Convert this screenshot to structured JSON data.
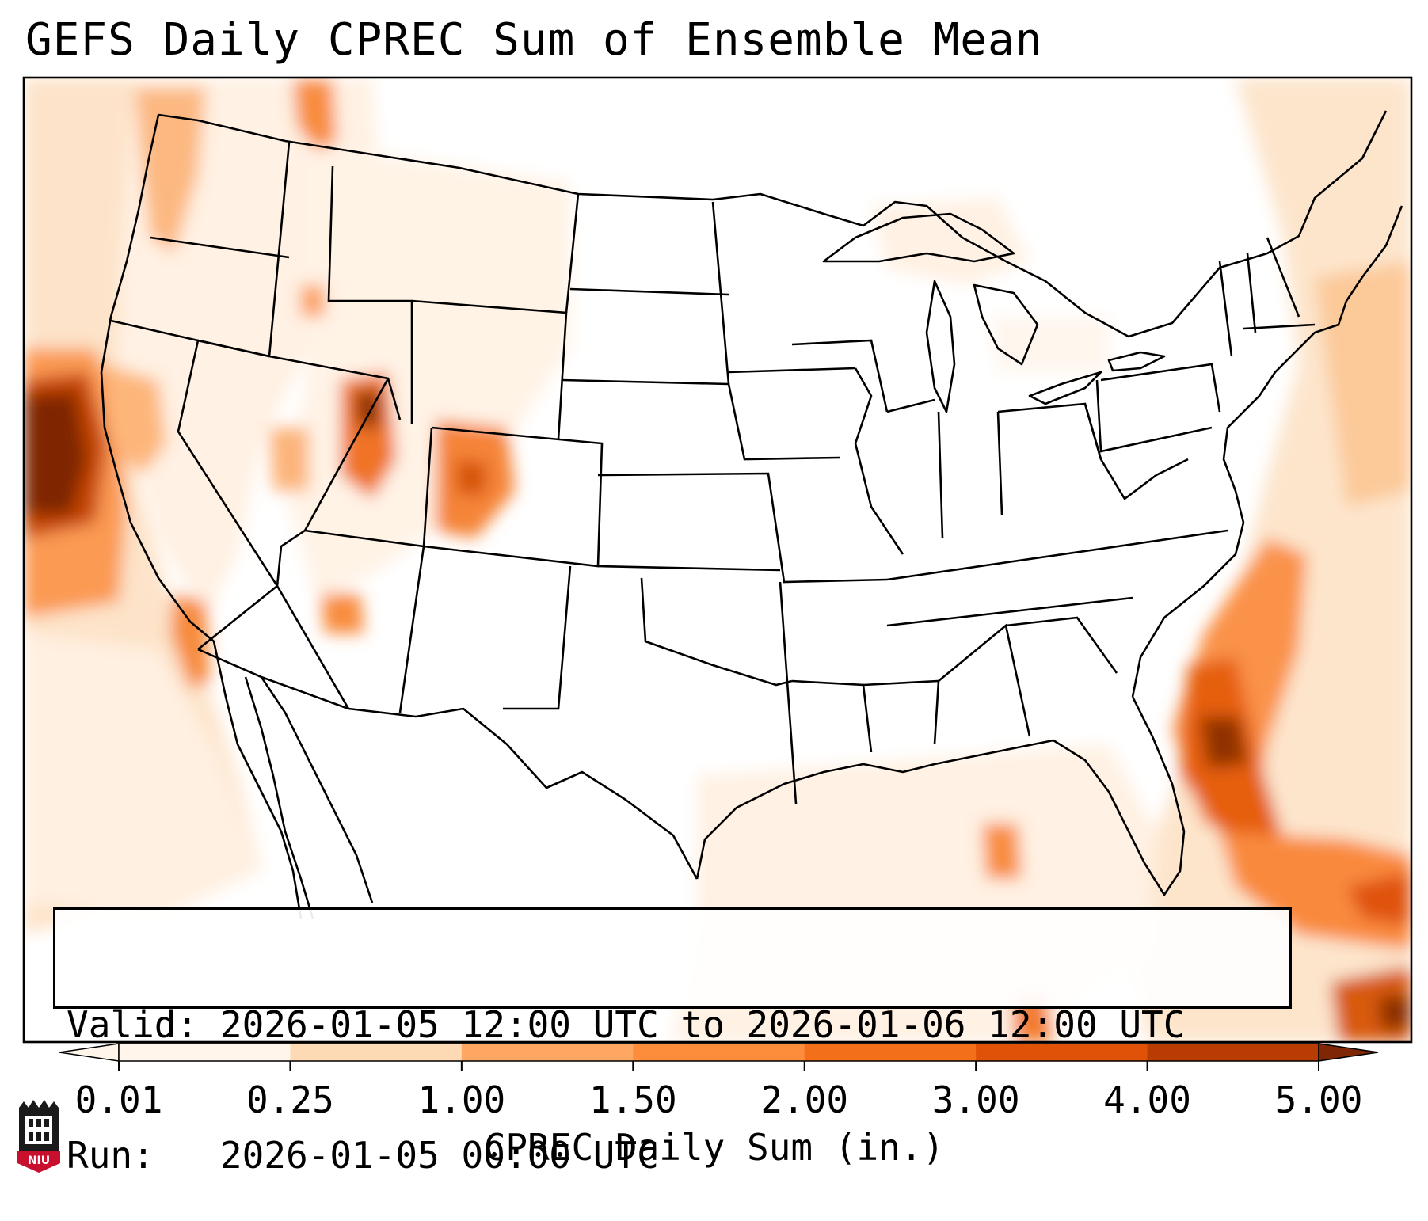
{
  "title": "GEFS Daily CPREC Sum of Ensemble Mean",
  "info": {
    "valid_label": "Valid:",
    "valid_value": "2026-01-05 12:00 UTC to 2026-01-06 12:00 UTC",
    "run_label": "Run:",
    "run_value": "2026-01-05 00:00 UTC"
  },
  "colorbar": {
    "label": "CPREC Daily Sum (in.)",
    "ticks": [
      "0.01",
      "0.25",
      "1.00",
      "1.50",
      "2.00",
      "3.00",
      "4.00",
      "5.00"
    ],
    "levels": [
      0.01,
      0.25,
      1.0,
      1.5,
      2.0,
      3.0,
      4.0,
      5.0
    ],
    "colors": [
      "#fff5eb",
      "#fdd9b4",
      "#fda762",
      "#fd8c3b",
      "#f36f1a",
      "#e05207",
      "#b93d02",
      "#7f2704"
    ],
    "extend": "both"
  },
  "map_data": {
    "projection": "Lambert Conformal",
    "region": "Continental United States",
    "field": "CPREC daily sum (in.)"
  },
  "logo": {
    "text": "NIU",
    "color": "#c8102e"
  }
}
